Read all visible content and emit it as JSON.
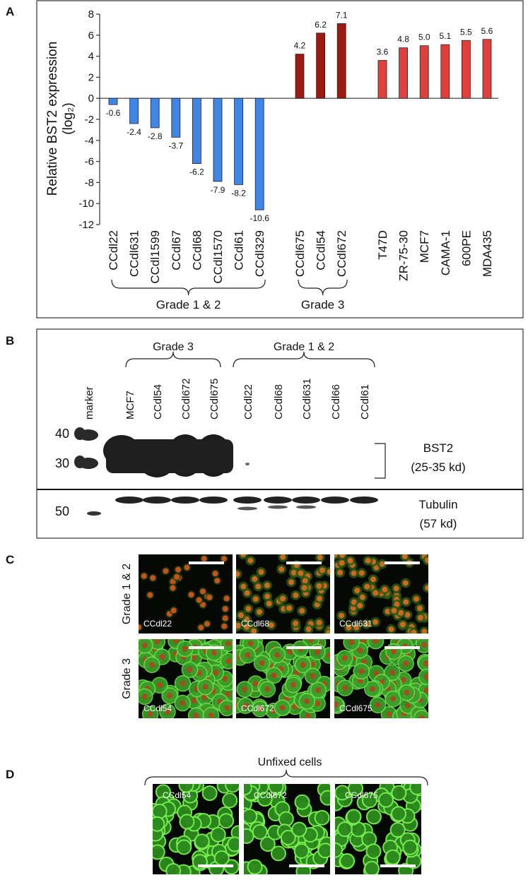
{
  "panel_labels": [
    "A",
    "B",
    "C",
    "D"
  ],
  "chart_data": {
    "type": "bar",
    "ylabel": [
      "Relative BST2 expression",
      "(log₂)"
    ],
    "ylim": [
      -12,
      8
    ],
    "yticks": [
      -12,
      -10,
      -8,
      -6,
      -4,
      -2,
      0,
      2,
      4,
      6,
      8
    ],
    "series": [
      {
        "name": "Grade 1 & 2",
        "color": "#3f86e6",
        "categories": [
          "CCdl22",
          "CCdl631",
          "CCdl1599",
          "CCdl67",
          "CCdl68",
          "CCdl1570",
          "CCdl61",
          "CCdl329"
        ],
        "values": [
          -0.6,
          -2.4,
          -2.8,
          -3.7,
          -6.2,
          -7.9,
          -8.2,
          -10.6
        ],
        "value_labels": [
          "-0.6",
          "-2.4",
          "-2.8",
          "-3.7",
          "-6.2",
          "-7.9",
          "-8.2",
          "-10.6"
        ]
      },
      {
        "name": "Grade 3",
        "color": "#9b1b12",
        "categories": [
          "CCdl675",
          "CCdl54",
          "CCdl672"
        ],
        "values": [
          4.2,
          6.2,
          7.1
        ],
        "value_labels": [
          "4.2",
          "6.2",
          "7.1"
        ]
      },
      {
        "color": "#e0403c",
        "categories": [
          "T47D",
          "ZR-75-30",
          "MCF7",
          "CAMA-1",
          "600PE",
          "MDA435"
        ],
        "values": [
          3.6,
          4.8,
          5.0,
          5.1,
          5.5,
          5.6
        ],
        "value_labels": [
          "3.6",
          "4.8",
          "5.0",
          "5.1",
          "5.5",
          "5.6"
        ]
      }
    ]
  },
  "blot": {
    "group_labels": [
      "Grade 3",
      "Grade 1 & 2"
    ],
    "lanes": [
      "marker",
      "MCF7",
      "CCdl54",
      "CCdl672",
      "CCdl675",
      "CCdl22",
      "CCdl68",
      "CCdl631",
      "CCdl66",
      "CCdl61"
    ],
    "mw_markers": [
      40,
      30,
      50
    ],
    "bands": [
      {
        "name": "BST2",
        "size": "(25-35 kd)"
      },
      {
        "name": "Tubulin",
        "size": "(57 kd)"
      }
    ]
  },
  "immunofluorescence": {
    "row_labels": [
      "Grade 1 & 2",
      "Grade 3"
    ],
    "images": [
      [
        "CCdl22",
        "CCdl68",
        "CCdl631"
      ],
      [
        "CCdl54",
        "CCdl672",
        "CCdl675"
      ]
    ]
  },
  "unfixed": {
    "title": "Unfixed cells",
    "images": [
      "CCdl54",
      "CCdl672",
      "CCdl675"
    ]
  }
}
